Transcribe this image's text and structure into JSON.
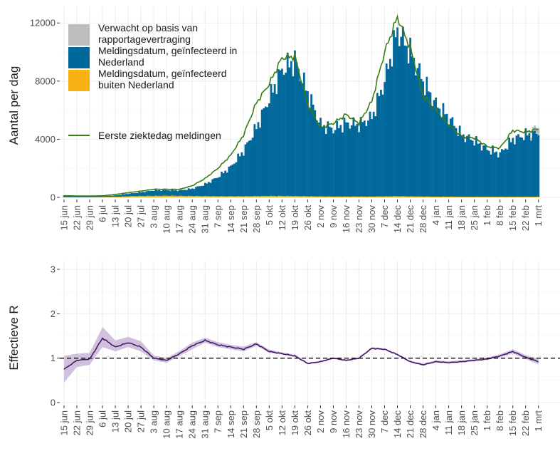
{
  "chart_data": [
    {
      "type": "bar",
      "ylabel": "Aantal per dag",
      "ylim": [
        0,
        12600
      ],
      "yticks": [
        0,
        4000,
        8000,
        12000
      ],
      "xtick_labels": [
        "15 jun",
        "22 jun",
        "29 jun",
        "6 jul",
        "13 jul",
        "20 jul",
        "27 jul",
        "3 aug",
        "10 aug",
        "17 aug",
        "24 aug",
        "31 aug",
        "7 sep",
        "14 sep",
        "21 sep",
        "28 sep",
        "5 okt",
        "12 okt",
        "19 okt",
        "26 okt",
        "2 nov",
        "9 nov",
        "16 nov",
        "23 nov",
        "30 nov",
        "7 dec",
        "14 dec",
        "21 dec",
        "28 dec",
        "4 jan",
        "11 jan",
        "18 jan",
        "25 jan",
        "1 feb",
        "8 feb",
        "15 feb",
        "22 feb",
        "1 mrt"
      ],
      "grid": true,
      "legend_position": "top-left",
      "colors": {
        "expected": "#bdbdbd",
        "nl": "#01689b",
        "abroad": "#f9b213",
        "onset": "#3a7d13"
      },
      "series_weekly": [
        {
          "name": "Meldingsdatum, geïnfecteerd in Nederland",
          "values": [
            130,
            100,
            90,
            80,
            130,
            250,
            350,
            480,
            500,
            480,
            600,
            900,
            1400,
            2100,
            3200,
            4800,
            6800,
            8800,
            9400,
            7200,
            5000,
            4700,
            5100,
            5000,
            5500,
            8000,
            11500,
            10000,
            8000,
            6400,
            5500,
            4300,
            3900,
            3300,
            3000,
            4000,
            4300,
            4400
          ]
        },
        {
          "name": "Meldingsdatum, geïnfecteerd buiten Nederland",
          "values": [
            10,
            10,
            15,
            25,
            40,
            80,
            100,
            110,
            120,
            110,
            100,
            90,
            80,
            80,
            80,
            90,
            100,
            100,
            90,
            80,
            70,
            60,
            60,
            60,
            60,
            70,
            80,
            70,
            60,
            50,
            50,
            40,
            40,
            40,
            40,
            40,
            40,
            40
          ]
        },
        {
          "name": "Verwacht op basis van rapportagevertraging",
          "values": [
            0,
            0,
            0,
            0,
            0,
            0,
            0,
            0,
            0,
            0,
            0,
            0,
            0,
            0,
            0,
            0,
            0,
            0,
            0,
            0,
            0,
            0,
            0,
            0,
            0,
            0,
            0,
            0,
            0,
            0,
            0,
            0,
            0,
            0,
            0,
            0,
            0,
            500
          ]
        },
        {
          "name": "Eerste ziektedag meldingen",
          "values": [
            110,
            100,
            90,
            110,
            200,
            320,
            430,
            560,
            560,
            550,
            800,
            1300,
            2000,
            2900,
            4300,
            6500,
            7800,
            9600,
            9700,
            6400,
            4800,
            5100,
            5700,
            5100,
            6600,
            10000,
            12400,
            10300,
            7000,
            6000,
            5000,
            4200,
            4100,
            3500,
            3400,
            4600,
            4500,
            4700
          ]
        }
      ],
      "legend": [
        "Verwacht op basis van rapportagevertraging",
        "Meldingsdatum, geïnfecteerd in Nederland",
        "Meldingsdatum, geïnfecteerd buiten Nederland",
        "Eerste ziektedag meldingen"
      ]
    },
    {
      "type": "line",
      "ylabel": "Effectieve R",
      "ylim": [
        0,
        3
      ],
      "yticks": [
        0,
        1,
        2,
        3
      ],
      "reference_line": 1,
      "xtick_labels": [
        "15 jun",
        "22 jun",
        "29 jun",
        "6 jul",
        "13 jul",
        "20 jul",
        "27 jul",
        "3 aug",
        "10 aug",
        "17 aug",
        "24 aug",
        "31 aug",
        "7 sep",
        "14 sep",
        "21 sep",
        "28 sep",
        "5 okt",
        "12 okt",
        "19 okt",
        "26 okt",
        "2 nov",
        "9 nov",
        "16 nov",
        "23 nov",
        "30 nov",
        "7 dec",
        "14 dec",
        "21 dec",
        "28 dec",
        "4 jan",
        "11 jan",
        "18 jan",
        "25 jan",
        "1 feb",
        "8 feb",
        "15 feb",
        "22 feb",
        "1 mrt"
      ],
      "grid": true,
      "colors": {
        "line": "#42145f",
        "band": "#c8b6d9",
        "reference": "#000000"
      },
      "series_weekly": [
        {
          "name": "R",
          "values": [
            0.75,
            0.95,
            0.98,
            1.45,
            1.25,
            1.35,
            1.25,
            1.0,
            0.95,
            1.1,
            1.28,
            1.4,
            1.3,
            1.25,
            1.2,
            1.32,
            1.15,
            1.1,
            1.05,
            0.88,
            0.92,
            1.0,
            0.95,
            1.0,
            1.22,
            1.2,
            1.08,
            0.92,
            0.85,
            0.92,
            0.9,
            0.92,
            0.95,
            0.98,
            1.05,
            1.15,
            1.02,
            0.92
          ]
        },
        {
          "name": "lower",
          "values": [
            0.45,
            0.8,
            0.85,
            1.25,
            1.15,
            1.25,
            1.15,
            0.95,
            0.9,
            1.05,
            1.2,
            1.35,
            1.25,
            1.2,
            1.15,
            1.28,
            1.12,
            1.08,
            1.03,
            0.86,
            0.9,
            0.98,
            0.93,
            0.98,
            1.2,
            1.18,
            1.06,
            0.9,
            0.83,
            0.9,
            0.88,
            0.9,
            0.93,
            0.96,
            1.02,
            1.1,
            0.98,
            0.86
          ]
        },
        {
          "name": "upper",
          "values": [
            1.05,
            1.1,
            1.12,
            1.7,
            1.4,
            1.48,
            1.38,
            1.06,
            1.0,
            1.16,
            1.35,
            1.46,
            1.36,
            1.3,
            1.26,
            1.36,
            1.19,
            1.13,
            1.08,
            0.9,
            0.94,
            1.02,
            0.97,
            1.02,
            1.25,
            1.22,
            1.1,
            0.94,
            0.88,
            0.95,
            0.93,
            0.95,
            0.98,
            1.01,
            1.09,
            1.2,
            1.07,
            0.98
          ]
        }
      ]
    }
  ]
}
